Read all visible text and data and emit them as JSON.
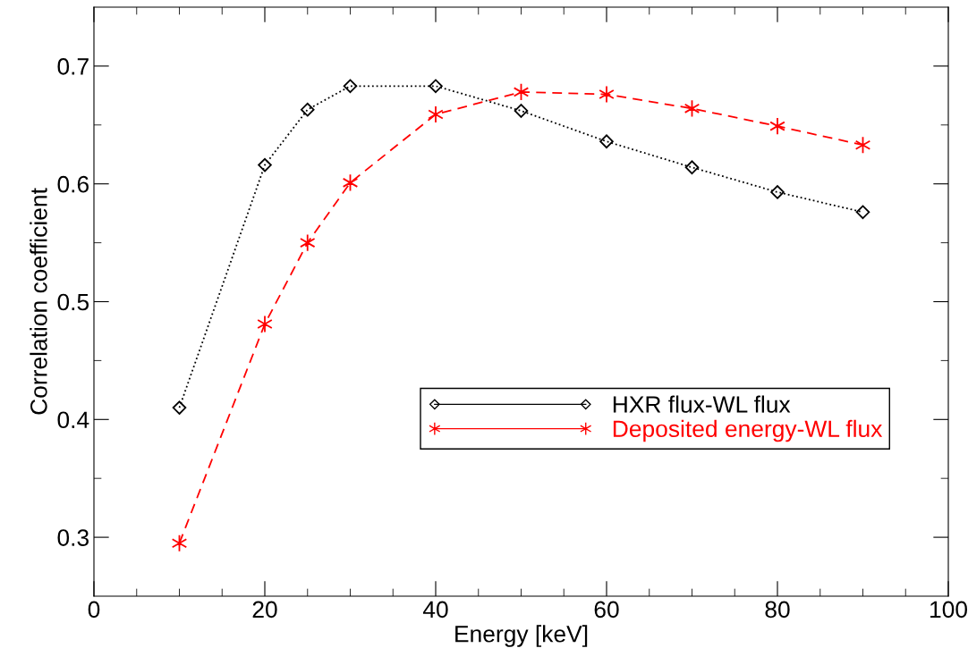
{
  "chart_data": {
    "type": "line",
    "xlabel": "Energy [keV]",
    "ylabel": "Correlation coefficient",
    "x": [
      10,
      20,
      25,
      30,
      40,
      50,
      60,
      70,
      80,
      90
    ],
    "series": [
      {
        "name": "HXR flux-WL flux",
        "color": "#000000",
        "marker": "diamond",
        "line_style": "dotted",
        "values": [
          0.41,
          0.616,
          0.663,
          0.683,
          0.683,
          0.662,
          0.636,
          0.614,
          0.593,
          0.576
        ]
      },
      {
        "name": "Deposited energy-WL flux",
        "color": "#ff0000",
        "marker": "cross",
        "line_style": "dashed",
        "values": [
          0.295,
          0.481,
          0.55,
          0.601,
          0.659,
          0.678,
          0.676,
          0.664,
          0.649,
          0.633
        ]
      }
    ],
    "xlim": [
      0,
      100
    ],
    "xticks": [
      0,
      {
        "value": 5,
        "label": null
      },
      {
        "value": 10,
        "label": null
      },
      {
        "value": 15,
        "label": null
      },
      20,
      {
        "value": 25,
        "label": null
      },
      {
        "value": 30,
        "label": null
      },
      {
        "value": 35,
        "label": null
      },
      40,
      {
        "value": 45,
        "label": null
      },
      {
        "value": 50,
        "label": null
      },
      {
        "value": 55,
        "label": null
      },
      60,
      {
        "value": 65,
        "label": null
      },
      {
        "value": 70,
        "label": null
      },
      {
        "value": 75,
        "label": null
      },
      80,
      {
        "value": 85,
        "label": null
      },
      {
        "value": 90,
        "label": null
      },
      {
        "value": 95,
        "label": null
      },
      100
    ],
    "ylim": [
      0.25,
      0.75
    ],
    "yticks": [
      0.3,
      {
        "value": 0.35,
        "label": null
      },
      0.4,
      {
        "value": 0.45,
        "label": null
      },
      0.5,
      {
        "value": 0.55,
        "label": null
      },
      0.6,
      {
        "value": 0.65,
        "label": null
      },
      0.7
    ],
    "grid": false,
    "legend": "lower right"
  }
}
